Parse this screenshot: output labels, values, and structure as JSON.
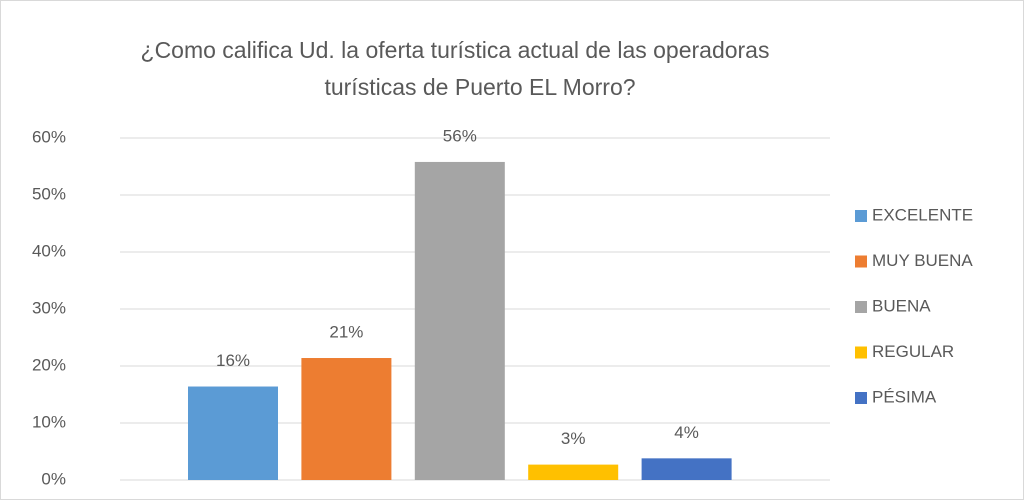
{
  "chart_data": {
    "type": "bar",
    "title": [
      "¿Como califica Ud. la oferta turística actual de las operadoras",
      "turísticas de Puerto EL Morro?"
    ],
    "series": [
      {
        "name": "EXCELENTE",
        "color": "#5b9bd5",
        "values": [
          16.4
        ],
        "value_labels": [
          "16%"
        ]
      },
      {
        "name": "MUY BUENA",
        "color": "#ed7d31",
        "values": [
          21.4
        ],
        "value_labels": [
          "21%"
        ]
      },
      {
        "name": "BUENA",
        "color": "#a5a5a5",
        "values": [
          55.8
        ],
        "value_labels": [
          "56%"
        ]
      },
      {
        "name": "REGULAR",
        "color": "#ffc000",
        "values": [
          2.7
        ],
        "value_labels": [
          "3%"
        ]
      },
      {
        "name": "PÉSIMA",
        "color": "#4472c4",
        "values": [
          3.8
        ],
        "value_labels": [
          "4%"
        ]
      }
    ],
    "ylim": [
      0,
      60
    ],
    "yticks": [
      {
        "value": 0,
        "label": "0%"
      },
      {
        "value": 10,
        "label": "10%"
      },
      {
        "value": 20,
        "label": "20%"
      },
      {
        "value": 30,
        "label": "30%"
      },
      {
        "value": 40,
        "label": "40%"
      },
      {
        "value": 50,
        "label": "50%"
      },
      {
        "value": 60,
        "label": "60%"
      }
    ],
    "grid": true,
    "legend": "right"
  }
}
